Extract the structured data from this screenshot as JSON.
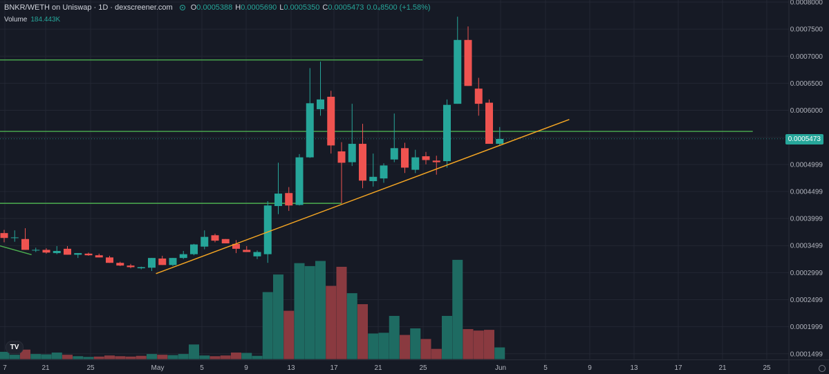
{
  "header": {
    "pair": "BNKR/WETH on Uniswap",
    "interval": "1D",
    "source": "dexscreener.com",
    "ohlc": [
      {
        "k": "O",
        "v": "0.0005388"
      },
      {
        "k": "H",
        "v": "0.0005690"
      },
      {
        "k": "L",
        "v": "0.0005350"
      },
      {
        "k": "C",
        "v": "0.0005473"
      }
    ],
    "change": "0.0₄8500 (+1.58%)",
    "volume_label": "Volume",
    "volume_value": "184.443K"
  },
  "logo_text": "TV",
  "colors": {
    "up": "#26a69a",
    "down": "#ef5350",
    "vol_up": "#1e6b62",
    "vol_down": "#8a3a40",
    "support": "#4caf50",
    "trend": "#f5a623"
  },
  "chart_data": {
    "type": "candlestick",
    "title": "BNKR/WETH on Uniswap · 1D · dexscreener.com",
    "ylim": [
      0.00014,
      0.0008
    ],
    "y_axis_labels": [
      "0.0008000",
      "0.0007500",
      "0.0007000",
      "0.0006500",
      "0.0006000",
      "0.0005500",
      "0.0004999",
      "0.0004499",
      "0.0003999",
      "0.0003499",
      "0.0002999",
      "0.0002499",
      "0.0001999",
      "0.0001499"
    ],
    "x_axis_labels": [
      "7",
      "21",
      "25",
      "May",
      "5",
      "9",
      "13",
      "17",
      "21",
      "25",
      "Jun",
      "5",
      "9",
      "13",
      "17",
      "21",
      "25"
    ],
    "last_price": "0.0005473",
    "candles": [
      {
        "o": 0.000373,
        "h": 0.000379,
        "l": 0.000356,
        "c": 0.000364
      },
      {
        "o": 0.000364,
        "h": 0.000378,
        "l": 0.000357,
        "c": 0.000365
      },
      {
        "o": 0.000362,
        "h": 0.000382,
        "l": 0.000343,
        "c": 0.000342
      },
      {
        "o": 0.000342,
        "h": 0.000346,
        "l": 0.000338,
        "c": 0.000342
      },
      {
        "o": 0.000342,
        "h": 0.000345,
        "l": 0.000335,
        "c": 0.000337
      },
      {
        "o": 0.000336,
        "h": 0.000349,
        "l": 0.000334,
        "c": 0.00034
      },
      {
        "o": 0.000344,
        "h": 0.000349,
        "l": 0.000334,
        "c": 0.000333
      },
      {
        "o": 0.000333,
        "h": 0.000336,
        "l": 0.000327,
        "c": 0.000336
      },
      {
        "o": 0.000335,
        "h": 0.000337,
        "l": 0.000331,
        "c": 0.000332
      },
      {
        "o": 0.000332,
        "h": 0.000335,
        "l": 0.000328,
        "c": 0.000328
      },
      {
        "o": 0.000328,
        "h": 0.000331,
        "l": 0.000318,
        "c": 0.000318
      },
      {
        "o": 0.000318,
        "h": 0.00032,
        "l": 0.000312,
        "c": 0.000313
      },
      {
        "o": 0.000313,
        "h": 0.000316,
        "l": 0.000308,
        "c": 0.00031
      },
      {
        "o": 0.000308,
        "h": 0.000311,
        "l": 0.000306,
        "c": 0.00031
      },
      {
        "o": 0.000309,
        "h": 0.000322,
        "l": 0.000303,
        "c": 0.000327
      },
      {
        "o": 0.000326,
        "h": 0.000331,
        "l": 0.000315,
        "c": 0.000314
      },
      {
        "o": 0.000314,
        "h": 0.000327,
        "l": 0.000312,
        "c": 0.000327
      },
      {
        "o": 0.000327,
        "h": 0.00034,
        "l": 0.000325,
        "c": 0.000334
      },
      {
        "o": 0.000334,
        "h": 0.000353,
        "l": 0.000332,
        "c": 0.000352
      },
      {
        "o": 0.000348,
        "h": 0.000378,
        "l": 0.000343,
        "c": 0.000366
      },
      {
        "o": 0.000369,
        "h": 0.000372,
        "l": 0.000356,
        "c": 0.000359
      },
      {
        "o": 0.000362,
        "h": 0.000361,
        "l": 0.000355,
        "c": 0.000354
      },
      {
        "o": 0.000353,
        "h": 0.00036,
        "l": 0.000336,
        "c": 0.000344
      },
      {
        "o": 0.000342,
        "h": 0.000349,
        "l": 0.000338,
        "c": 0.000338
      },
      {
        "o": 0.00033,
        "h": 0.000341,
        "l": 0.000325,
        "c": 0.000338
      },
      {
        "o": 0.000334,
        "h": 0.000432,
        "l": 0.000318,
        "c": 0.000424
      },
      {
        "o": 0.000423,
        "h": 0.000503,
        "l": 0.000408,
        "c": 0.000446
      },
      {
        "o": 0.000447,
        "h": 0.000458,
        "l": 0.000414,
        "c": 0.000424
      },
      {
        "o": 0.000425,
        "h": 0.000519,
        "l": 0.000424,
        "c": 0.000513
      },
      {
        "o": 0.000513,
        "h": 0.000678,
        "l": 0.000512,
        "c": 0.000613
      },
      {
        "o": 0.000602,
        "h": 0.00069,
        "l": 0.00059,
        "c": 0.00062
      },
      {
        "o": 0.000625,
        "h": 0.000636,
        "l": 0.00052,
        "c": 0.000535
      },
      {
        "o": 0.000524,
        "h": 0.000541,
        "l": 0.000428,
        "c": 0.000503
      },
      {
        "o": 0.000504,
        "h": 0.000612,
        "l": 0.000497,
        "c": 0.000538
      },
      {
        "o": 0.000538,
        "h": 0.000575,
        "l": 0.000456,
        "c": 0.00047
      },
      {
        "o": 0.000469,
        "h": 0.00052,
        "l": 0.000459,
        "c": 0.000477
      },
      {
        "o": 0.000474,
        "h": 0.000502,
        "l": 0.000466,
        "c": 0.000498
      },
      {
        "o": 0.000509,
        "h": 0.000594,
        "l": 0.000504,
        "c": 0.00053
      },
      {
        "o": 0.00053,
        "h": 0.00054,
        "l": 0.000484,
        "c": 0.000494
      },
      {
        "o": 0.00049,
        "h": 0.000527,
        "l": 0.000484,
        "c": 0.000513
      },
      {
        "o": 0.000515,
        "h": 0.000523,
        "l": 0.0005,
        "c": 0.000508
      },
      {
        "o": 0.000507,
        "h": 0.000516,
        "l": 0.000481,
        "c": 0.000504
      },
      {
        "o": 0.000506,
        "h": 0.00062,
        "l": 0.000494,
        "c": 0.00061
      },
      {
        "o": 0.000612,
        "h": 0.000773,
        "l": 0.000612,
        "c": 0.00073
      },
      {
        "o": 0.00073,
        "h": 0.000755,
        "l": 0.000645,
        "c": 0.000645
      },
      {
        "o": 0.00064,
        "h": 0.00066,
        "l": 0.00059,
        "c": 0.000612
      },
      {
        "o": 0.000614,
        "h": 0.00062,
        "l": 0.00054,
        "c": 0.000538
      },
      {
        "o": 0.000538,
        "h": 0.000569,
        "l": 0.000535,
        "c": 0.000547
      }
    ],
    "volume": [
      {
        "v": 0.2,
        "up": true
      },
      {
        "v": 0.12,
        "up": true
      },
      {
        "v": 0.26,
        "up": false
      },
      {
        "v": 0.14,
        "up": true
      },
      {
        "v": 0.13,
        "up": true
      },
      {
        "v": 0.18,
        "up": true
      },
      {
        "v": 0.12,
        "up": false
      },
      {
        "v": 0.08,
        "up": true
      },
      {
        "v": 0.06,
        "up": true
      },
      {
        "v": 0.07,
        "up": false
      },
      {
        "v": 0.1,
        "up": false
      },
      {
        "v": 0.08,
        "up": false
      },
      {
        "v": 0.07,
        "up": false
      },
      {
        "v": 0.09,
        "up": false
      },
      {
        "v": 0.14,
        "up": true
      },
      {
        "v": 0.12,
        "up": false
      },
      {
        "v": 0.11,
        "up": true
      },
      {
        "v": 0.14,
        "up": true
      },
      {
        "v": 0.4,
        "up": true
      },
      {
        "v": 0.1,
        "up": true
      },
      {
        "v": 0.08,
        "up": false
      },
      {
        "v": 0.1,
        "up": false
      },
      {
        "v": 0.18,
        "up": false
      },
      {
        "v": 0.17,
        "up": true
      },
      {
        "v": 0.09,
        "up": true
      },
      {
        "v": 1.83,
        "up": true
      },
      {
        "v": 2.31,
        "up": true
      },
      {
        "v": 1.32,
        "up": false
      },
      {
        "v": 2.62,
        "up": true
      },
      {
        "v": 2.54,
        "up": true
      },
      {
        "v": 2.68,
        "up": true
      },
      {
        "v": 2.0,
        "up": false
      },
      {
        "v": 2.52,
        "up": false
      },
      {
        "v": 1.8,
        "up": true
      },
      {
        "v": 1.5,
        "up": false
      },
      {
        "v": 0.7,
        "up": true
      },
      {
        "v": 0.72,
        "up": true
      },
      {
        "v": 1.18,
        "up": true
      },
      {
        "v": 0.66,
        "up": false
      },
      {
        "v": 0.84,
        "up": true
      },
      {
        "v": 0.55,
        "up": false
      },
      {
        "v": 0.28,
        "up": false
      },
      {
        "v": 1.18,
        "up": true
      },
      {
        "v": 2.71,
        "up": true
      },
      {
        "v": 0.82,
        "up": false
      },
      {
        "v": 0.78,
        "up": false
      },
      {
        "v": 0.8,
        "up": false
      },
      {
        "v": 0.32,
        "up": true
      }
    ],
    "support_lines": [
      {
        "price": 0.000693,
        "from": -2,
        "to": 39.7
      },
      {
        "price": 0.000561,
        "from": -2,
        "to": 71
      },
      {
        "price": 0.000428,
        "from": -2,
        "to": 32
      }
    ],
    "trendlines": [
      {
        "x1": 14.4,
        "y1": 0.000298,
        "x2": 53.6,
        "y2": 0.000583
      },
      {
        "x1": -0.5,
        "y1": 0.00035,
        "x2": 2.6,
        "y2": 0.000333
      }
    ]
  }
}
